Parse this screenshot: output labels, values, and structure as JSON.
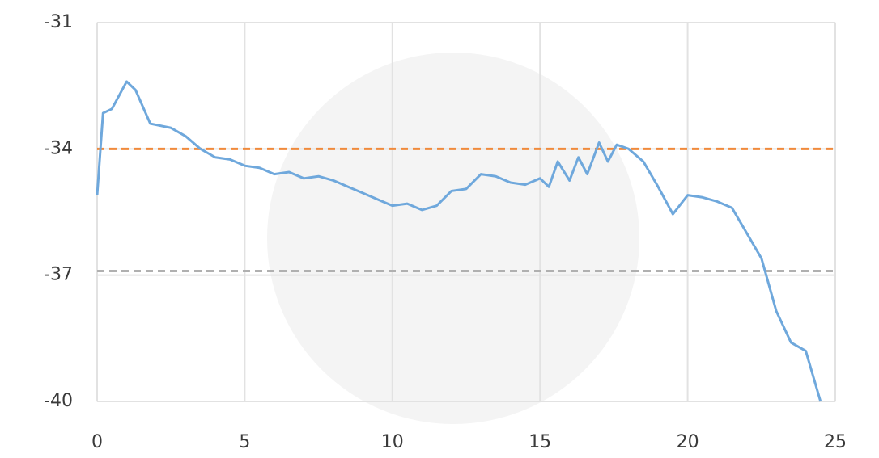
{
  "chart_data": {
    "type": "line",
    "x": [
      0,
      0.2,
      0.5,
      1.0,
      1.3,
      1.8,
      2.5,
      3.0,
      3.5,
      4,
      4.5,
      5,
      5.5,
      6,
      6.5,
      7,
      7.5,
      8,
      8.5,
      9,
      9.5,
      10,
      10.5,
      11,
      11.5,
      12,
      12.5,
      13,
      13.5,
      14,
      14.5,
      15,
      15.3,
      15.6,
      16,
      16.3,
      16.6,
      17,
      17.3,
      17.6,
      18,
      18.5,
      19,
      19.5,
      20,
      20.5,
      21,
      21.5,
      22,
      22.5,
      23,
      23.5,
      24,
      24.5
    ],
    "series": [
      {
        "color": "#6fa8dc",
        "values": [
          -35.1,
          -33.15,
          -33.05,
          -32.4,
          -32.6,
          -33.4,
          -33.5,
          -33.7,
          -34.0,
          -34.2,
          -34.25,
          -34.4,
          -34.45,
          -34.6,
          -34.55,
          -34.7,
          -34.65,
          -34.75,
          -34.9,
          -35.05,
          -35.2,
          -35.35,
          -35.3,
          -35.45,
          -35.35,
          -35.0,
          -34.95,
          -34.6,
          -34.65,
          -34.8,
          -34.85,
          -34.7,
          -34.9,
          -34.3,
          -34.75,
          -34.2,
          -34.6,
          -33.85,
          -34.3,
          -33.9,
          -34.0,
          -34.3,
          -34.9,
          -35.55,
          -35.1,
          -35.15,
          -35.25,
          -35.4,
          -36.0,
          -36.6,
          -37.85,
          -38.6,
          -38.8,
          -40.0
        ]
      }
    ],
    "hlines": [
      {
        "value": -34,
        "color": "#f08a3c"
      },
      {
        "value": -36.9,
        "color": "#b0b0b0"
      }
    ],
    "xlim": [
      0,
      25
    ],
    "xticks": [
      0,
      5,
      10,
      15,
      20,
      25
    ],
    "ylim": [
      -40,
      -31
    ],
    "yticks": [
      -31,
      -34,
      -37,
      -40
    ],
    "grid": true
  }
}
